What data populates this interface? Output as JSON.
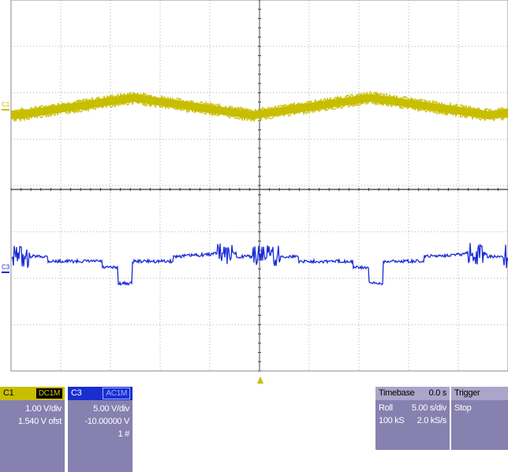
{
  "scope": {
    "ch1_marker": "C1",
    "ch3_marker": "C3",
    "ch1_color": "#c8be00",
    "ch3_color": "#1a2bd6",
    "trigger_marker_color": "#c8be00"
  },
  "channel1": {
    "label": "C1",
    "coupling": "DC1M",
    "scale": "1.00 V/div",
    "offset": "1.540 V ofst"
  },
  "channel3": {
    "label": "C3",
    "coupling": "AC1M",
    "scale": "5.00 V/div",
    "offset": "-10.00000 V",
    "count": "1 #"
  },
  "timebase": {
    "title": "Timebase",
    "delay": "0.0 s",
    "mode": "Roll",
    "time_per_div": "5.00 s/div",
    "samples": "100 kS",
    "sample_rate": "2.0 kS/s"
  },
  "trigger": {
    "title": "Trigger",
    "state": "Stop"
  }
}
